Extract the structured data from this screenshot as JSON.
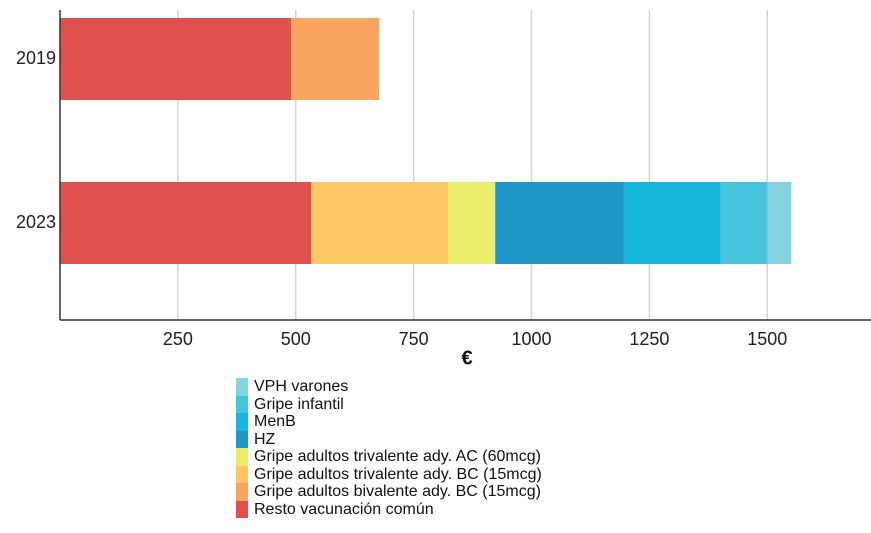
{
  "chart_data": {
    "type": "bar",
    "orientation": "horizontal",
    "stacked": true,
    "categories": [
      "2019",
      "2023"
    ],
    "xlabel": "€",
    "xlim": [
      0,
      1720
    ],
    "xticks": [
      250,
      500,
      750,
      1000,
      1250,
      1500
    ],
    "grid": true,
    "legend_position": "bottom",
    "series": [
      {
        "name": "Resto vacunación común",
        "color": "#e0504e",
        "values": [
          490,
          533
        ]
      },
      {
        "name": "Gripe adultos bivalente ady. BC (15mcg)",
        "color": "#f9a45f",
        "values": [
          187,
          0
        ]
      },
      {
        "name": "Gripe adultos trivalente ady. BC (15mcg)",
        "color": "#fec864",
        "values": [
          0,
          290
        ]
      },
      {
        "name": "Gripe adultos trivalente ady. AC (60mcg)",
        "color": "#eded6c",
        "values": [
          0,
          100
        ]
      },
      {
        "name": "HZ",
        "color": "#1f96c8",
        "values": [
          0,
          273
        ]
      },
      {
        "name": "MenB",
        "color": "#14b7db",
        "values": [
          0,
          205
        ]
      },
      {
        "name": "Gripe infantil",
        "color": "#47c5dc",
        "values": [
          0,
          100
        ]
      },
      {
        "name": "VPH varones",
        "color": "#85d3e1",
        "values": [
          0,
          50
        ]
      }
    ]
  },
  "legend": {
    "items": [
      {
        "label": "VPH varones",
        "color": "#85d3e1"
      },
      {
        "label": "Gripe infantil",
        "color": "#47c5dc"
      },
      {
        "label": "MenB",
        "color": "#14b7db"
      },
      {
        "label": "HZ",
        "color": "#1f96c8"
      },
      {
        "label": "Gripe adultos trivalente ady. AC (60mcg)",
        "color": "#eded6c"
      },
      {
        "label": "Gripe adultos trivalente ady. BC (15mcg)",
        "color": "#fec864"
      },
      {
        "label": "Gripe adultos bivalente ady. BC (15mcg)",
        "color": "#f9a45f"
      },
      {
        "label": "Resto vacunación común",
        "color": "#e0504e"
      }
    ]
  }
}
